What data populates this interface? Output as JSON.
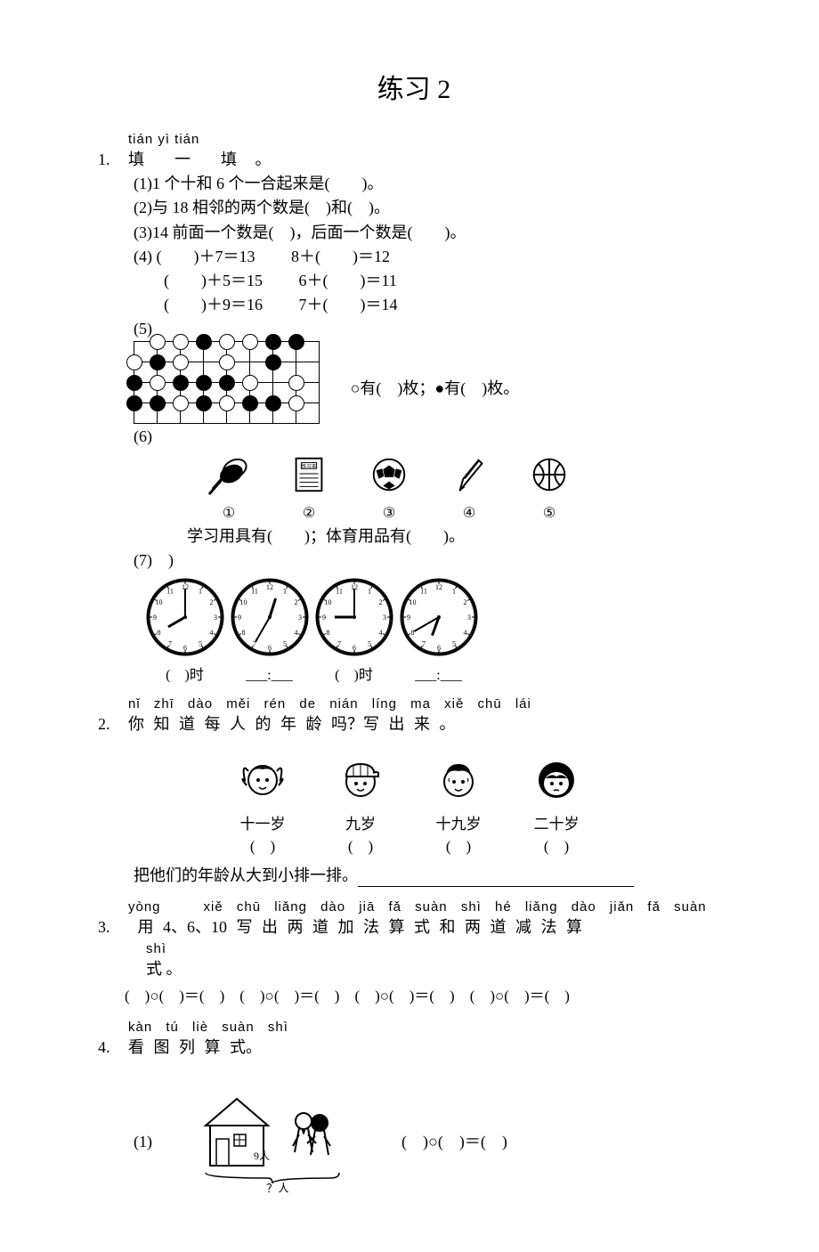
{
  "title": "练习 2",
  "q1": {
    "pinyin": "tián yì tián",
    "hanzi": "填　一　填 。",
    "num": "1.",
    "s1": "(1)1 个十和 6 个一合起来是(　　)。",
    "s2": "(2)与 18 相邻的两个数是(　)和(　)。",
    "s3": "(3)14 前面一个数是(　)，后面一个数是(　　)。",
    "s4": "(4)",
    "eq1a": "(　　)＋7＝13",
    "eq1b": "8＋(　　)＝12",
    "eq2a": "(　　)＋5＝15",
    "eq2b": "6＋(　　)＝11",
    "eq3a": "(　　)＋9＝16",
    "eq3b": "7＋(　　)＝14",
    "s5": "(5)",
    "s5text": "○有(　)枚；●有(　)枚。",
    "s6": "(6)",
    "items": [
      "①",
      "②",
      "③",
      "④",
      "⑤"
    ],
    "s6text": "学习用具有(　　)；体育用品有(　　)。",
    "s7": "(7)",
    "clock_labels": [
      "(　)时",
      "___:___",
      "(　)时",
      "___:___"
    ]
  },
  "q2": {
    "pinyin": "nǐ zhī dào měi rén de nián líng ma  xiě chū lái",
    "hanzi": "你 知 道 每 人 的 年 龄 吗？写 出 来 。",
    "num": "2.",
    "ages": [
      "十一岁",
      "九岁",
      "十九岁",
      "二十岁"
    ],
    "blank": "(　)",
    "sort": "把他们的年龄从大到小排一排。"
  },
  "q3": {
    "pinyin1": "yòng　　　xiě chū liǎng dào jiā fǎ suàn shì hé liǎng dào jiǎn fǎ suàn",
    "hanzi1": " 用 4、6、10 写 出 两 道 加 法 算 式 和 两 道 减 法 算",
    "pinyin2": "shì",
    "hanzi2": "式 。",
    "num": "3.",
    "expr": "(　)○(　)＝(　)　(　)○(　)＝(　)　(　)○(　)＝(　)　(　)○(　)＝(　)"
  },
  "q4": {
    "pinyin": "kàn tú liè suàn shì",
    "hanzi": "看 图 列 算 式。",
    "num": "4.",
    "s1label": "(1)",
    "house_count": "9人",
    "people_q": "？人",
    "expr": "(　)○(　)＝(　)"
  },
  "go_board": {
    "rows": 4,
    "cols": 8,
    "stones": [
      [
        1,
        0,
        "w"
      ],
      [
        2,
        0,
        "w"
      ],
      [
        3,
        0,
        "b"
      ],
      [
        4,
        0,
        "w"
      ],
      [
        5,
        0,
        "w"
      ],
      [
        6,
        0,
        "b"
      ],
      [
        7,
        0,
        "b"
      ],
      [
        0,
        1,
        "w"
      ],
      [
        1,
        1,
        "b"
      ],
      [
        2,
        1,
        "w"
      ],
      [
        4,
        1,
        "w"
      ],
      [
        6,
        1,
        "b"
      ],
      [
        0,
        2,
        "b"
      ],
      [
        1,
        2,
        "w"
      ],
      [
        2,
        2,
        "b"
      ],
      [
        3,
        2,
        "b"
      ],
      [
        4,
        2,
        "b"
      ],
      [
        5,
        2,
        "w"
      ],
      [
        7,
        2,
        "w"
      ],
      [
        0,
        3,
        "b"
      ],
      [
        1,
        3,
        "b"
      ],
      [
        2,
        3,
        "w"
      ],
      [
        3,
        3,
        "b"
      ],
      [
        4,
        3,
        "w"
      ],
      [
        5,
        3,
        "b"
      ],
      [
        6,
        3,
        "b"
      ],
      [
        7,
        3,
        "w"
      ]
    ]
  },
  "clock_hands": [
    {
      "h": 8,
      "m": 0
    },
    {
      "h": 12,
      "m": 35
    },
    {
      "h": 9,
      "m": 0
    },
    {
      "h": 6,
      "m": 40
    }
  ],
  "colors": {
    "fg": "#000000",
    "bg": "#ffffff"
  }
}
